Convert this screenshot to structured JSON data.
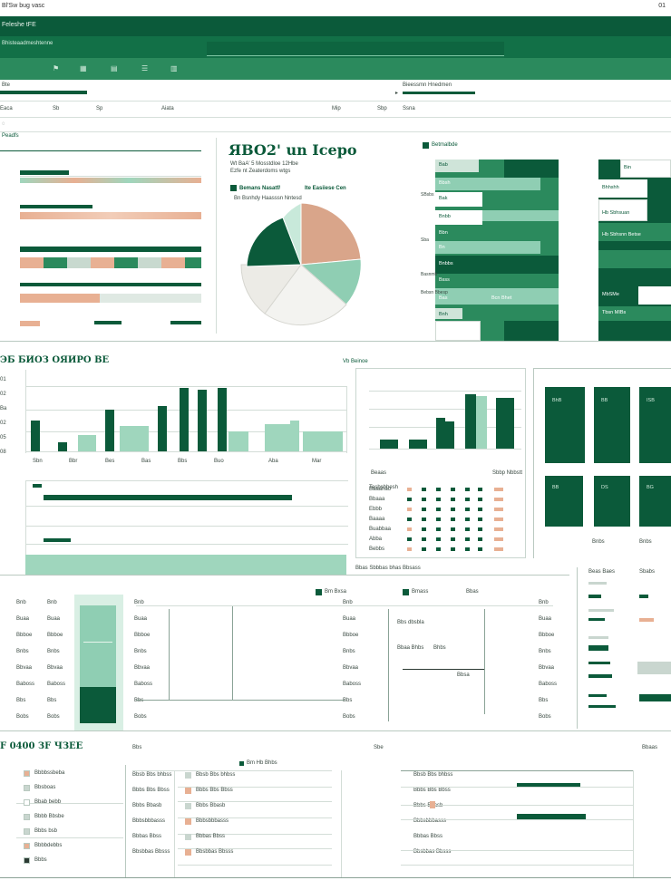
{
  "window": {
    "title": "Bl'Sw bug vasc",
    "corner": "01"
  },
  "header": {
    "app_name": "Feleshe tFE",
    "subtitle": "Bhisteaadmeshtenne",
    "search_placeholder": ""
  },
  "toolbar": {
    "items": [
      "Eaca",
      "Sb",
      "Sp",
      "Aiata",
      "Mip",
      "Sbp",
      "Ssna"
    ]
  },
  "filter_row": {
    "left": "Bte",
    "right": "Bieessmn Hnedmen"
  },
  "section1": {
    "label": "Peadfs",
    "chart_title": "ЯBO2' un Icepo",
    "chart_sub1": "Wt BaA' 5 Mosstdloe 12Hbe",
    "chart_sub2": "Ezfe nt Zeaterdoms wtgs",
    "legend1": "Bemans Nasatf/",
    "legend2": "Ite Easiiese Cen",
    "legend3": "Bn Bsnhdy Haasssn Nntesd",
    "matrix_title": "Betmalbde",
    "matrix_rows": [
      "Bab",
      "Bbsh",
      "Bak",
      "Bnbb",
      "Bbn",
      "Bn",
      "Bnbbs",
      "Bsss",
      "Bas",
      "Bnh"
    ],
    "matrix_notes": [
      "Bcn Bhet",
      "SBsbs",
      "Sba",
      "Basnmb",
      "Bebsn Bbesp"
    ],
    "side_rows": [
      "Bin",
      "Bhhshh",
      "Hb Sbhsuan",
      "Hb Sbhsnn Betse",
      "MbSMe",
      "Tbsn MIBs"
    ]
  },
  "section2": {
    "title": "ЭБ БИОЗ ОЯИРО ВЕ",
    "right_title": "Vb Beinoe",
    "y_ticks": [
      "01",
      "02",
      "Ba",
      "02",
      "05",
      "08"
    ],
    "bar_labels": [
      "Sbn",
      "Bbr",
      "Bes",
      "Bas",
      "Bbs",
      "Buo",
      "Aba",
      "Mar"
    ],
    "mini_title": "Beaas",
    "mini_legend": "Sbbp Nbbstt",
    "dots_header": "Tesbsbbesh",
    "dot_rows": [
      "Baaahao",
      "Bbaaa",
      "Ebbb",
      "Baaaa",
      "Buabbaa",
      "Abba",
      "Bebbs"
    ],
    "tiles": [
      "BhB",
      "BB",
      "ISB",
      "BB",
      "DS",
      "BG"
    ],
    "tile_caption": "Bnbs"
  },
  "section3": {
    "row_labels": [
      "Bnb",
      "Buaa",
      "Bbboe",
      "Bnbs",
      "Bbvaa",
      "Baboss",
      "Bbs",
      "Bobs"
    ],
    "legend": [
      "Bm Bxsa",
      "Bmass",
      "Bbas"
    ],
    "annot": [
      "Bbs dbsbla",
      "Bbaa Bhbs",
      "Bhbs",
      "Bbsa"
    ],
    "caption": "Bbas Sbbbas bhas Bbsass",
    "right_header": [
      "Beas Baes",
      "Sbabs",
      "Ebbs"
    ]
  },
  "section4": {
    "title": "F 0400 ЗF ЧЗEE",
    "tab1": "Bbs",
    "tab2": "Sbe",
    "tab3": "Bbaas",
    "legend": "Bm Hb Bhbs",
    "list": [
      "Bbbbssbeba",
      "Bbsboas",
      "Bbab bebb",
      "Bbbb Bbsbe",
      "Bbbs bsb",
      "Bbbbdebbs",
      "Bbbs"
    ],
    "table_rows": [
      "Bbsb Bbs bhbss",
      "Bbbs Bbs Bbss",
      "Bbbs Bbasb",
      "Bbbsbbbasss",
      "Bbbas Bbss",
      "Bbsbbas Bbsss"
    ]
  },
  "colors": {
    "dark_green": "#0b5a3a",
    "mid_green": "#2b8a5d",
    "light_green": "#9fd6bd",
    "peach": "#e8b093"
  }
}
